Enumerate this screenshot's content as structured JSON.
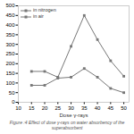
{
  "chart_data": {
    "type": "line",
    "x": [
      15,
      20,
      25,
      30,
      35,
      40,
      45,
      50
    ],
    "series": [
      {
        "name": "in nitrogen",
        "color": "#777777",
        "marker": "square",
        "line_style": "solid",
        "values": [
          160,
          160,
          130,
          290,
          450,
          325,
          215,
          135
        ]
      },
      {
        "name": "in air",
        "color": "#777777",
        "marker": "square",
        "line_style": "solid",
        "values": [
          88,
          88,
          125,
          130,
          175,
          130,
          72,
          50
        ]
      }
    ],
    "xlabel": "Dose γ-rays",
    "caption": "Figure :4 Effect of dose γ-rays on water absorbency of the superabsorbent",
    "xlim": [
      10,
      52
    ],
    "ylim": [
      0,
      500
    ],
    "xticks": [
      10,
      15,
      20,
      25,
      30,
      35,
      40,
      45,
      50
    ],
    "yticks": [
      0,
      50,
      100,
      150,
      200,
      250,
      300,
      350,
      400,
      450,
      500
    ],
    "legend": "upper left"
  }
}
